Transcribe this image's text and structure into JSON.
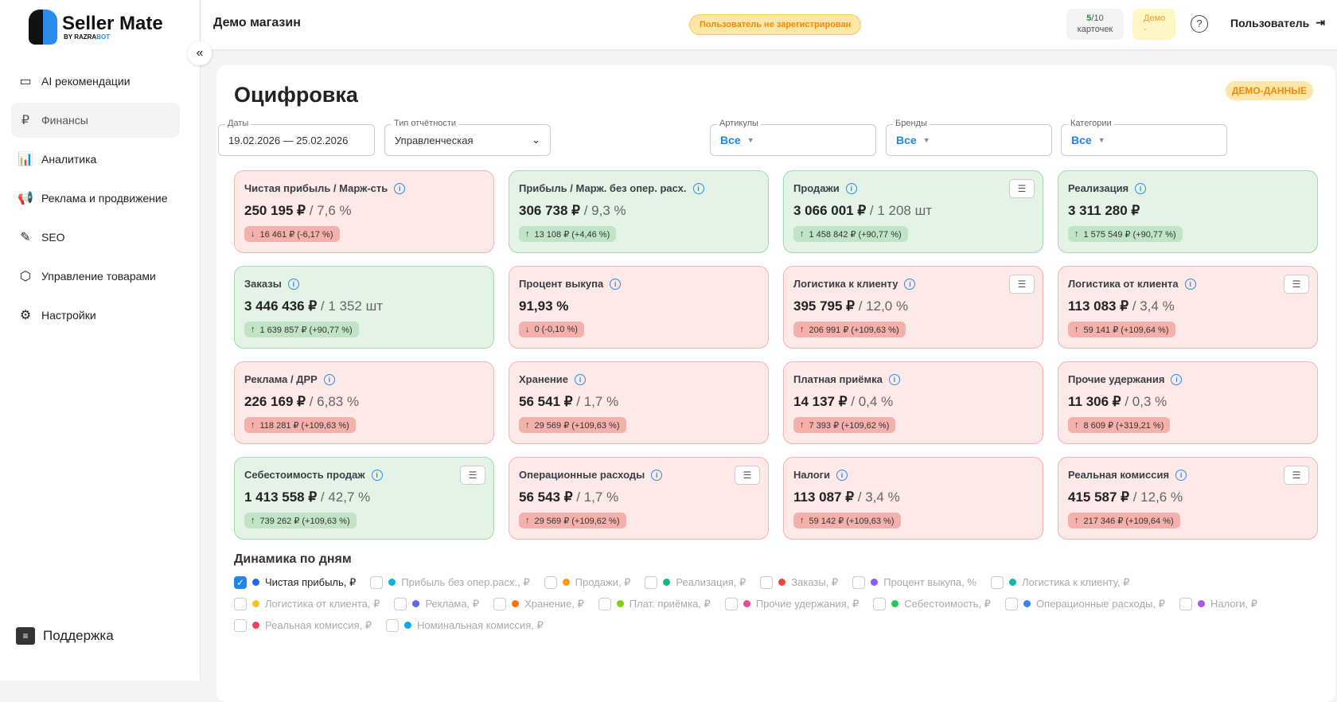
{
  "brand": {
    "name": "Seller Mate",
    "sub_prefix": "BY RAZRA",
    "sub_suffix": "BOT"
  },
  "sidebar": {
    "items": [
      {
        "label": "AI рекомендации",
        "icon": "card-icon",
        "glyph": "▭",
        "active": false
      },
      {
        "label": "Финансы",
        "icon": "ruble-icon",
        "glyph": "₽",
        "active": true
      },
      {
        "label": "Аналитика",
        "icon": "chart-icon",
        "glyph": "📊",
        "active": false
      },
      {
        "label": "Реклама и продвижение",
        "icon": "megaphone-icon",
        "glyph": "📢",
        "active": false
      },
      {
        "label": "SEO",
        "icon": "pen-icon",
        "glyph": "✎",
        "active": false
      },
      {
        "label": "Управление товарами",
        "icon": "box-icon",
        "glyph": "⬡",
        "active": false
      },
      {
        "label": "Настройки",
        "icon": "gear-icon",
        "glyph": "⚙",
        "active": false
      }
    ],
    "support": "Поддержка",
    "collapse": "«"
  },
  "topbar": {
    "shop": "Демо магазин",
    "unregistered": "Пользователь не зарегистрирован",
    "cards_used": "5",
    "cards_total": "/10",
    "cards_label": "карточек",
    "demo_label": "Демо",
    "demo_value": "-",
    "help": "?",
    "user": "Пользователь",
    "logout": "⇥"
  },
  "page": {
    "title": "Оцифровка",
    "demo_badge": "ДЕМО-ДАННЫЕ"
  },
  "filters": {
    "dates": {
      "label": "Даты",
      "value": "19.02.2026 — 25.02.2026"
    },
    "report": {
      "label": "Тип отчётности",
      "value": "Управленческая"
    },
    "articles": {
      "label": "Артикулы",
      "value": "Все"
    },
    "brands": {
      "label": "Бренды",
      "value": "Все"
    },
    "categories": {
      "label": "Категории",
      "value": "Все"
    }
  },
  "cards": [
    {
      "title": "Чистая прибыль / Марж-сть",
      "main": "250 195 ₽",
      "secondary": " / 7,6 %",
      "delta": "16 461 ₽ (-6,17 %)",
      "direction": "down",
      "status": "red",
      "list": false
    },
    {
      "title": "Прибыль / Марж. без опер. расх.",
      "main": "306 738 ₽",
      "secondary": " / 9,3 %",
      "delta": "13 108 ₽ (+4,46 %)",
      "direction": "up",
      "status": "green",
      "list": false
    },
    {
      "title": "Продажи",
      "main": "3 066 001 ₽",
      "secondary": " / 1 208 шт",
      "delta": "1 458 842 ₽ (+90,77 %)",
      "direction": "up",
      "status": "green",
      "list": true
    },
    {
      "title": "Реализация",
      "main": "3 311 280 ₽",
      "secondary": "",
      "delta": "1 575 549 ₽ (+90,77 %)",
      "direction": "up",
      "status": "green",
      "list": false
    },
    {
      "title": "Заказы",
      "main": "3 446 436 ₽",
      "secondary": " / 1 352 шт",
      "delta": "1 639 857 ₽ (+90,77 %)",
      "direction": "up",
      "status": "green",
      "list": false
    },
    {
      "title": "Процент выкупа",
      "main": "91,93 %",
      "secondary": "",
      "delta": "0 (-0,10 %)",
      "direction": "down",
      "status": "red",
      "list": false
    },
    {
      "title": "Логистика к клиенту",
      "main": "395 795 ₽",
      "secondary": " / 12,0 %",
      "delta": "206 991 ₽ (+109,63 %)",
      "direction": "up",
      "status": "red",
      "list": true
    },
    {
      "title": "Логистика от клиента",
      "main": "113 083 ₽",
      "secondary": " / 3,4 %",
      "delta": "59 141 ₽ (+109,64 %)",
      "direction": "up",
      "status": "red",
      "list": true
    },
    {
      "title": "Реклама / ДРР",
      "main": "226 169 ₽",
      "secondary": " / 6,83 %",
      "delta": "118 281 ₽ (+109,63 %)",
      "direction": "up",
      "status": "red",
      "list": false
    },
    {
      "title": "Хранение",
      "main": "56 541 ₽",
      "secondary": " / 1,7 %",
      "delta": "29 569 ₽ (+109,63 %)",
      "direction": "up",
      "status": "red",
      "list": false
    },
    {
      "title": "Платная приёмка",
      "main": "14 137 ₽",
      "secondary": " / 0,4 %",
      "delta": "7 393 ₽ (+109,62 %)",
      "direction": "up",
      "status": "red",
      "list": false
    },
    {
      "title": "Прочие удержания",
      "main": "11 306 ₽",
      "secondary": " / 0,3 %",
      "delta": "8 609 ₽ (+319,21 %)",
      "direction": "up",
      "status": "red",
      "list": false
    },
    {
      "title": "Себестоимость продаж",
      "main": "1 413 558 ₽",
      "secondary": " / 42,7 %",
      "delta": "739 262 ₽ (+109,63 %)",
      "direction": "up",
      "status": "green",
      "list": true
    },
    {
      "title": "Операционные расходы",
      "main": "56 543 ₽",
      "secondary": " / 1,7 %",
      "delta": "29 569 ₽ (+109,62 %)",
      "direction": "up",
      "status": "red",
      "list": true
    },
    {
      "title": "Налоги",
      "main": "113 087 ₽",
      "secondary": " / 3,4 %",
      "delta": "59 142 ₽ (+109,63 %)",
      "direction": "up",
      "status": "red",
      "list": false
    },
    {
      "title": "Реальная комиссия",
      "main": "415 587 ₽",
      "secondary": " / 12,6 %",
      "delta": "217 346 ₽ (+109,64 %)",
      "direction": "up",
      "status": "red",
      "list": true
    }
  ],
  "dynamics": {
    "title": "Динамика по дням",
    "series": [
      {
        "label": "Чистая прибыль, ₽",
        "color": "#2563eb",
        "checked": true
      },
      {
        "label": "Прибыль без опер.расх., ₽",
        "color": "#06b6d4",
        "checked": false
      },
      {
        "label": "Продажи, ₽",
        "color": "#f59e0b",
        "checked": false
      },
      {
        "label": "Реализация, ₽",
        "color": "#10b981",
        "checked": false
      },
      {
        "label": "Заказы, ₽",
        "color": "#ef4444",
        "checked": false
      },
      {
        "label": "Процент выкупа, %",
        "color": "#8b5cf6",
        "checked": false
      },
      {
        "label": "Логистика к клиенту, ₽",
        "color": "#14b8a6",
        "checked": false
      },
      {
        "label": "Логистика от клиента, ₽",
        "color": "#fbbf24",
        "checked": false
      },
      {
        "label": "Реклама, ₽",
        "color": "#6366f1",
        "checked": false
      },
      {
        "label": "Хранение, ₽",
        "color": "#f97316",
        "checked": false
      },
      {
        "label": "Плат. приёмка, ₽",
        "color": "#84cc16",
        "checked": false
      },
      {
        "label": "Прочие удержания, ₽",
        "color": "#ec4899",
        "checked": false
      },
      {
        "label": "Себестоимость, ₽",
        "color": "#22c55e",
        "checked": false
      },
      {
        "label": "Операционные расходы, ₽",
        "color": "#3b82f6",
        "checked": false
      },
      {
        "label": "Налоги, ₽",
        "color": "#a855f7",
        "checked": false
      },
      {
        "label": "Реальная комиссия, ₽",
        "color": "#f43f5e",
        "checked": false
      },
      {
        "label": "Номинальная комиссия, ₽",
        "color": "#0ea5e9",
        "checked": false
      }
    ]
  }
}
